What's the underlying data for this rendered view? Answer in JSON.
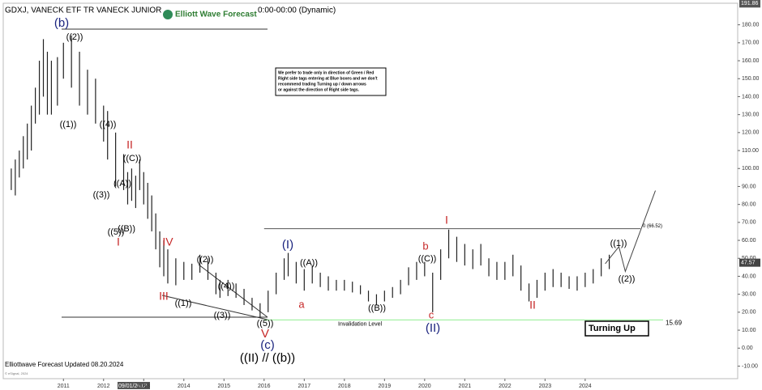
{
  "header": {
    "symbol": "GDXJ, VANECK ETF TR VANECK JUNIOR",
    "logo": "Elliott Wave Forecast",
    "session": "0:00-00:00 (Dynamic)",
    "cursor_date": "09/01/2012"
  },
  "note": [
    "We prefer to trade only in direction of Green / Red",
    "Right side tags entering at Blue boxes and we don't",
    "recommend trading Turning up / down arrows",
    "or against the direction of Right side tags."
  ],
  "footer": "Elliottwave Forecast Updated 08.20.2024",
  "copyright": "© eSignal, 2024",
  "badge": "Turning Up",
  "chart_data": {
    "type": "ohlc",
    "x": [
      2009.7,
      2009.8,
      2009.9,
      2010.0,
      2010.1,
      2010.2,
      2010.3,
      2010.4,
      2010.5,
      2010.6,
      2010.7,
      2010.85,
      2011.0,
      2011.2,
      2011.4,
      2011.6,
      2011.8,
      2012.0,
      2012.1,
      2012.3,
      2012.5,
      2012.6,
      2012.7,
      2012.8,
      2012.9,
      2013.0,
      2013.1,
      2013.2,
      2013.3,
      2013.4,
      2013.5,
      2013.6,
      2013.8,
      2014.0,
      2014.2,
      2014.4,
      2014.6,
      2014.8,
      2014.9,
      2015.1,
      2015.3,
      2015.5,
      2015.7,
      2015.9,
      2016.1,
      2016.3,
      2016.5,
      2016.6,
      2016.8,
      2017.0,
      2017.2,
      2017.4,
      2017.6,
      2017.8,
      2018.0,
      2018.2,
      2018.4,
      2018.6,
      2018.8,
      2019.0,
      2019.2,
      2019.4,
      2019.6,
      2019.8,
      2020.0,
      2020.2,
      2020.4,
      2020.6,
      2020.8,
      2021.0,
      2021.2,
      2021.4,
      2021.6,
      2021.8,
      2022.0,
      2022.2,
      2022.4,
      2022.6,
      2022.8,
      2023.0,
      2023.2,
      2023.4,
      2023.6,
      2023.8,
      2024.0,
      2024.2,
      2024.4,
      2024.6
    ],
    "high": [
      100,
      105,
      110,
      118,
      125,
      135,
      145,
      160,
      172,
      165,
      160,
      162,
      170,
      174,
      165,
      155,
      150,
      135,
      132,
      120,
      108,
      98,
      100,
      96,
      105,
      98,
      92,
      85,
      75,
      65,
      60,
      55,
      50,
      48,
      47,
      52,
      50,
      42,
      38,
      38,
      36,
      33,
      28,
      25,
      32,
      42,
      50,
      53,
      48,
      44,
      46,
      42,
      40,
      38,
      38,
      37,
      35,
      32,
      30,
      32,
      34,
      38,
      45,
      48,
      48,
      42,
      55,
      66,
      62,
      58,
      55,
      58,
      50,
      48,
      48,
      52,
      46,
      36,
      38,
      42,
      44,
      42,
      40,
      40,
      42,
      44,
      50,
      52
    ],
    "low": [
      88,
      85,
      95,
      100,
      105,
      110,
      125,
      130,
      140,
      130,
      130,
      135,
      150,
      145,
      135,
      130,
      125,
      115,
      105,
      90,
      88,
      80,
      82,
      78,
      88,
      80,
      72,
      65,
      55,
      45,
      40,
      36,
      35,
      38,
      38,
      42,
      38,
      30,
      28,
      29,
      28,
      24,
      21,
      17,
      20,
      30,
      38,
      40,
      36,
      32,
      36,
      34,
      32,
      32,
      32,
      31,
      30,
      26,
      24,
      26,
      28,
      30,
      35,
      38,
      40,
      20,
      38,
      50,
      48,
      46,
      44,
      46,
      40,
      38,
      38,
      40,
      32,
      26,
      28,
      32,
      34,
      34,
      33,
      32,
      34,
      36,
      40,
      44
    ],
    "color": "#222222",
    "xlim": [
      2009.5,
      2027.8
    ],
    "ylim": [
      -17,
      192
    ],
    "xticks": [
      2011,
      2012,
      2013,
      2014,
      2015,
      2016,
      2017,
      2018,
      2019,
      2020,
      2021,
      2022,
      2023,
      2024
    ],
    "yticks": [
      {
        "value": 180,
        "label": "180.00"
      },
      {
        "value": 170,
        "label": "170.00"
      },
      {
        "value": 160,
        "label": "160.00"
      },
      {
        "value": 150,
        "label": "150.00"
      },
      {
        "value": 140,
        "label": "140.00"
      },
      {
        "value": 130,
        "label": "130.00"
      },
      {
        "value": 120,
        "label": "120.00"
      },
      {
        "value": 110,
        "label": "110.00"
      },
      {
        "value": 100,
        "label": "100.00"
      },
      {
        "value": 90,
        "label": "90.00"
      },
      {
        "value": 80,
        "label": "80.00"
      },
      {
        "value": 70,
        "label": "70.00"
      },
      {
        "value": 60,
        "label": "60.00"
      },
      {
        "value": 50,
        "label": "50.00"
      },
      {
        "value": 40,
        "label": "40.00"
      },
      {
        "value": 30,
        "label": "30.00"
      },
      {
        "value": 20,
        "label": "20.00"
      },
      {
        "value": 10,
        "label": "10.00"
      },
      {
        "value": 0,
        "label": "0.00"
      },
      {
        "value": -10,
        "label": "-10.00"
      }
    ],
    "last_price": 47.57,
    "max_price": 191.86,
    "levels": [
      {
        "value": 66.52,
        "label": "0 (66.52)",
        "color": "#555555"
      },
      {
        "value": 15.69,
        "color": "#90ee90"
      }
    ],
    "invalidation_label": "Invalidation Level",
    "projection": {
      "x": [
        2024.5,
        2024.84,
        2025.0,
        2025.75
      ],
      "y": [
        47,
        56.5,
        42.7,
        87.7
      ]
    },
    "annotations": [
      "(b)",
      "((2))",
      "((1))",
      "((4))",
      "II",
      "((C))",
      "((A))",
      "((3))",
      "((B))",
      "((5))",
      "I",
      "IV",
      "((2))",
      "((4))",
      "III",
      "((1))",
      "((3))",
      "((5))",
      "V",
      "(c)",
      "((II) // ((b))",
      "(I)",
      "((A))",
      "a",
      "((B))",
      "b",
      "((C))",
      "I",
      "c",
      "(II)",
      "II",
      "((1))",
      "((2))"
    ]
  }
}
